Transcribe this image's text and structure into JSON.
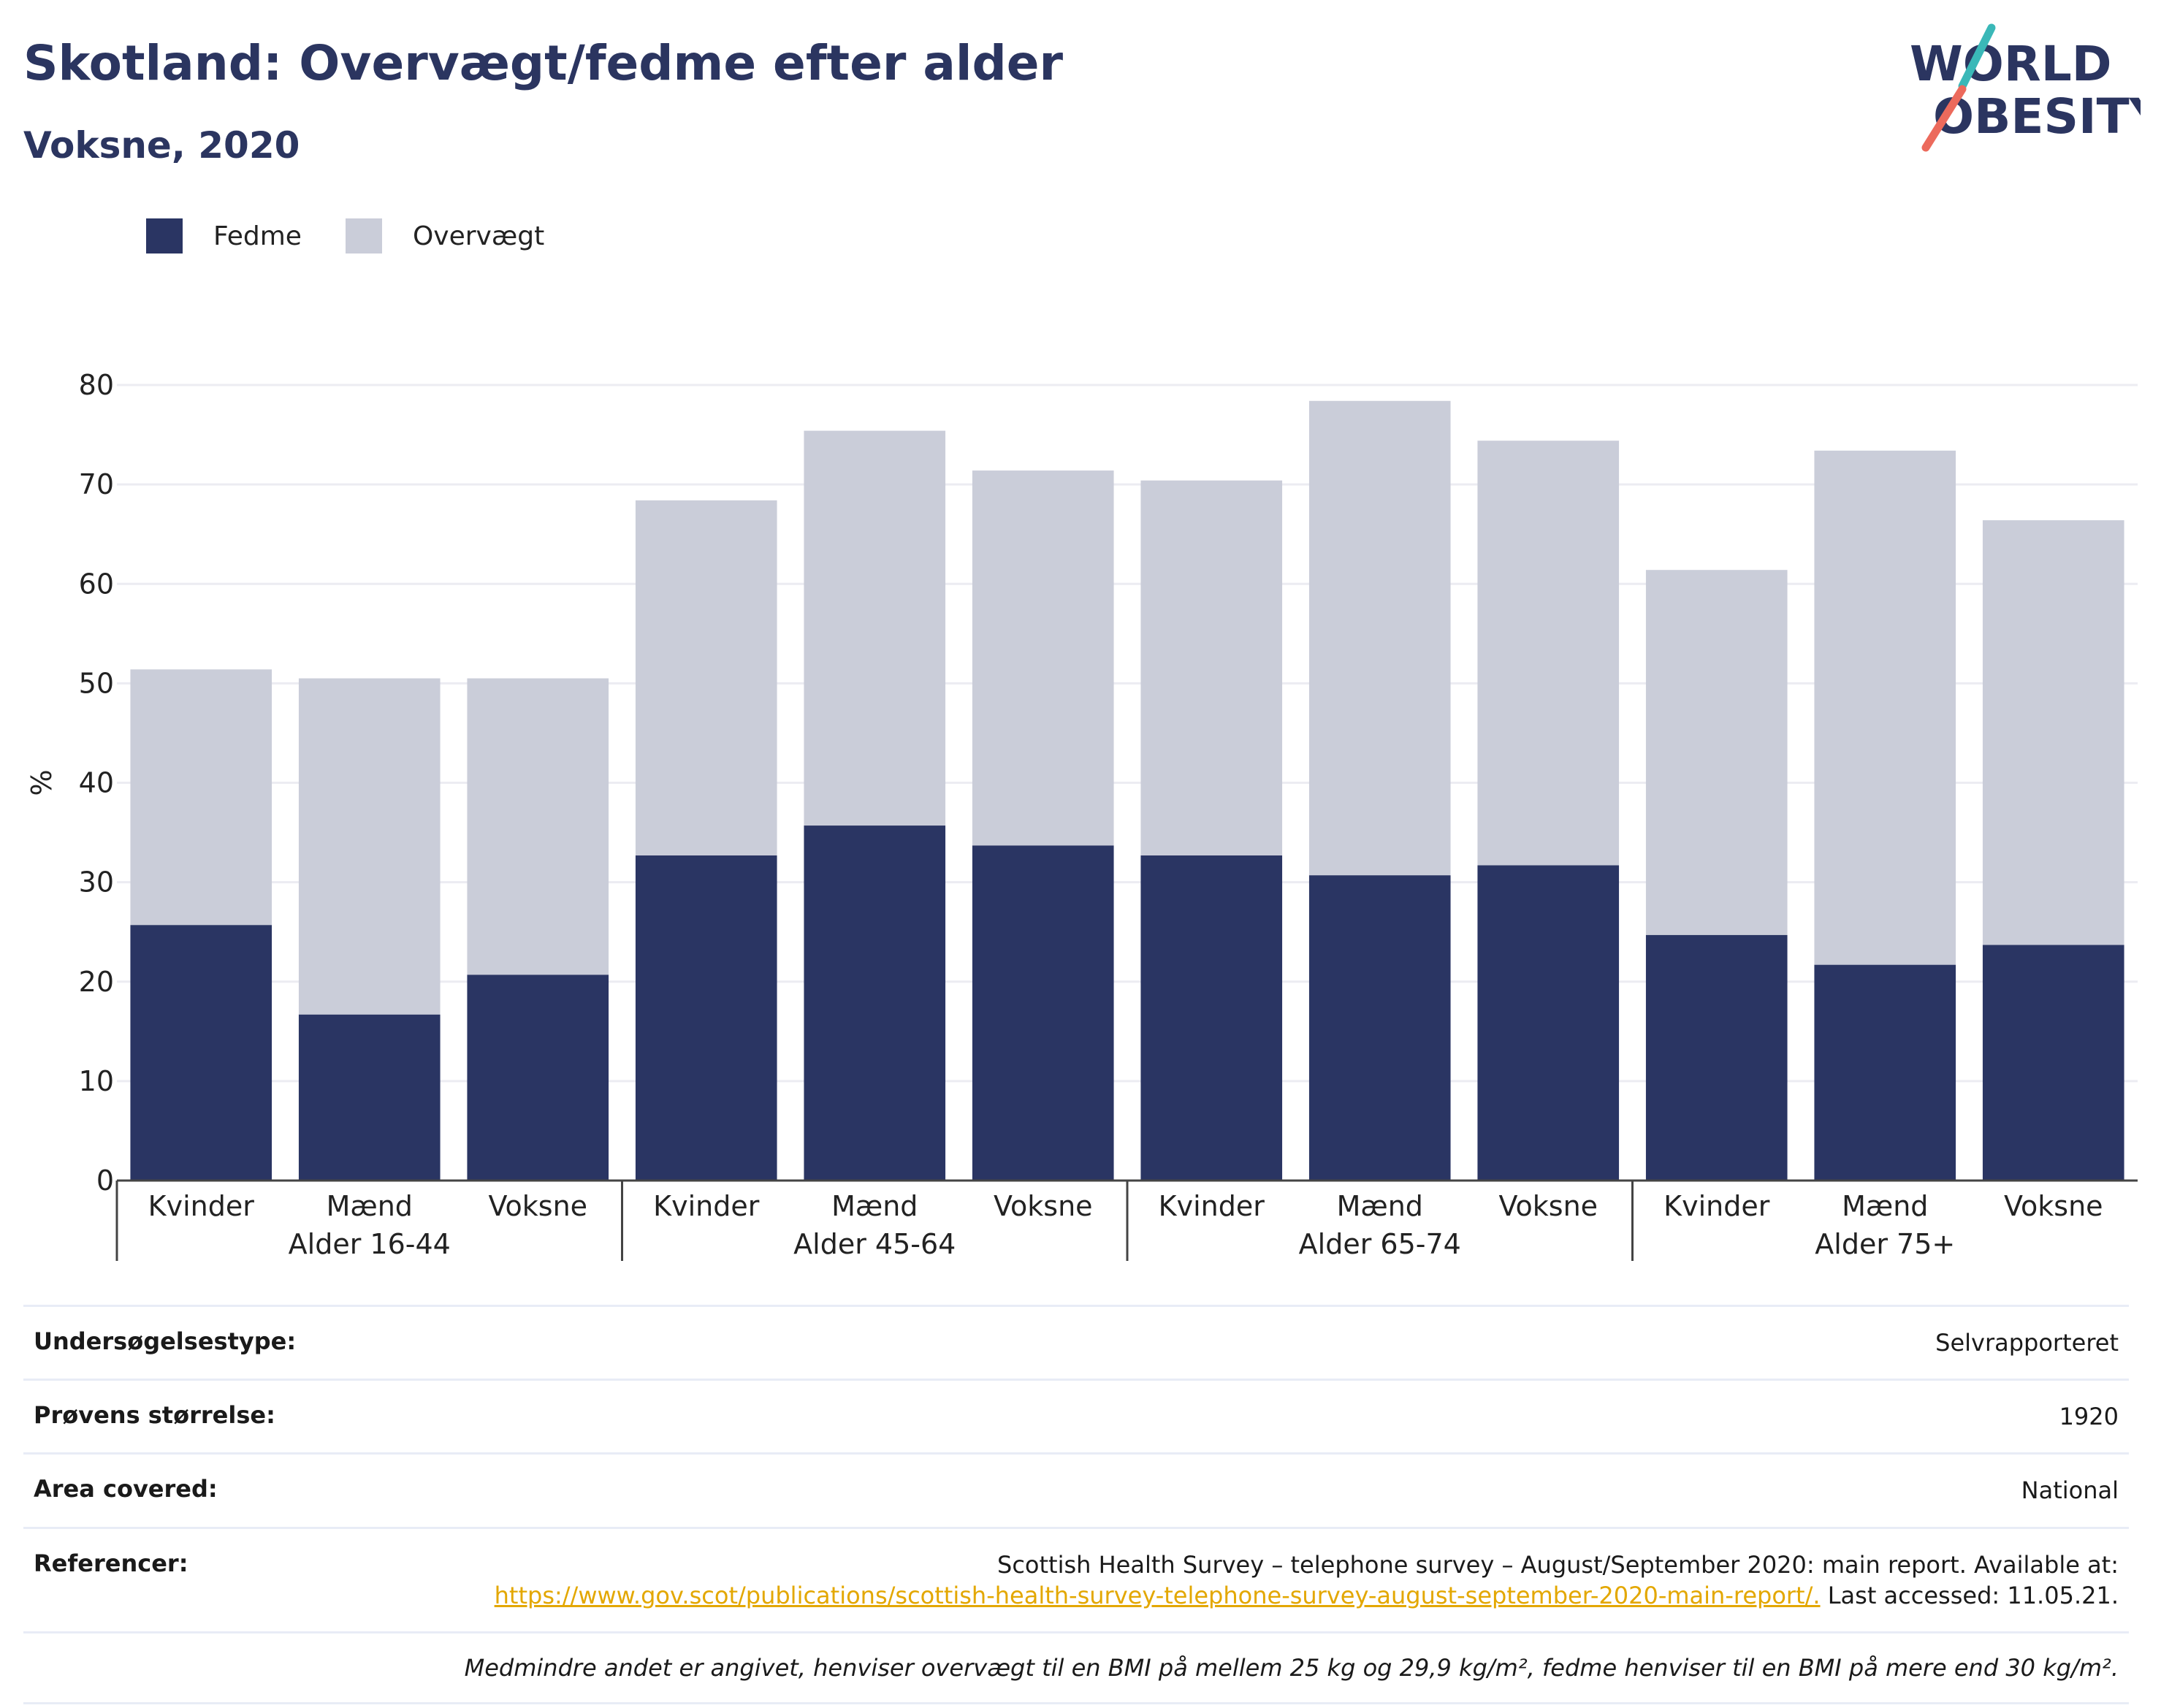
{
  "header": {
    "title": "Skotland: Overvægt/fedme efter alder",
    "subtitle": "Voksne, 2020",
    "logo_line1": "WORLD",
    "logo_line2": "OBESITY"
  },
  "colors": {
    "title": "#2b3560",
    "fedme": "#2a3563",
    "overvaegt": "#cacdd9",
    "gridline": "#ececf2",
    "link": "#e3a700",
    "logo_teal": "#3ab8b8",
    "logo_coral": "#ec6a5c"
  },
  "legend": [
    {
      "label": "Fedme",
      "color": "#2a3563"
    },
    {
      "label": "Overvægt",
      "color": "#cacdd9"
    }
  ],
  "chart_data": {
    "type": "bar",
    "stacked": true,
    "title": "Skotland: Overvægt/fedme efter alder",
    "subtitle": "Voksne, 2020",
    "ylabel": "%",
    "ylim": [
      0,
      80
    ],
    "yticks": [
      0,
      10,
      20,
      30,
      40,
      50,
      60,
      70,
      80
    ],
    "grid": true,
    "legend_position": "top-left",
    "groups": [
      {
        "name": "Alder 16-44",
        "categories": [
          "Kvinder",
          "Mænd",
          "Voksne"
        ]
      },
      {
        "name": "Alder 45-64",
        "categories": [
          "Kvinder",
          "Mænd",
          "Voksne"
        ]
      },
      {
        "name": "Alder 65-74",
        "categories": [
          "Kvinder",
          "Mænd",
          "Voksne"
        ]
      },
      {
        "name": "Alder 75+",
        "categories": [
          "Kvinder",
          "Mænd",
          "Voksne"
        ]
      }
    ],
    "series": [
      {
        "name": "Fedme",
        "values": [
          25.7,
          16.7,
          20.7,
          32.7,
          35.7,
          33.7,
          32.7,
          30.7,
          31.7,
          24.7,
          21.7,
          23.7
        ]
      },
      {
        "name": "Overvægt",
        "values": [
          25.7,
          33.8,
          29.8,
          35.7,
          39.7,
          37.7,
          37.7,
          47.7,
          42.7,
          36.7,
          51.7,
          42.7
        ]
      }
    ]
  },
  "info": {
    "survey_type_label": "Undersøgelsestype:",
    "survey_type_value": "Selvrapporteret",
    "sample_size_label": "Prøvens størrelse:",
    "sample_size_value": "1920",
    "area_label": "Area covered:",
    "area_value": "National",
    "references_label": "Referencer:",
    "references_text": "Scottish Health Survey – telephone survey – August/September 2020: main report. Available at:",
    "references_link": "https://www.gov.scot/publications/scottish-health-survey-telephone-survey-august-september-2020-main-report/.",
    "references_tail": "Last accessed: 11.05.21.",
    "note": "Medmindre andet er angivet, henviser overvægt til en BMI på mellem 25 kg og 29,9 kg/m², fedme henviser til en BMI på mere end 30 kg/m²."
  }
}
